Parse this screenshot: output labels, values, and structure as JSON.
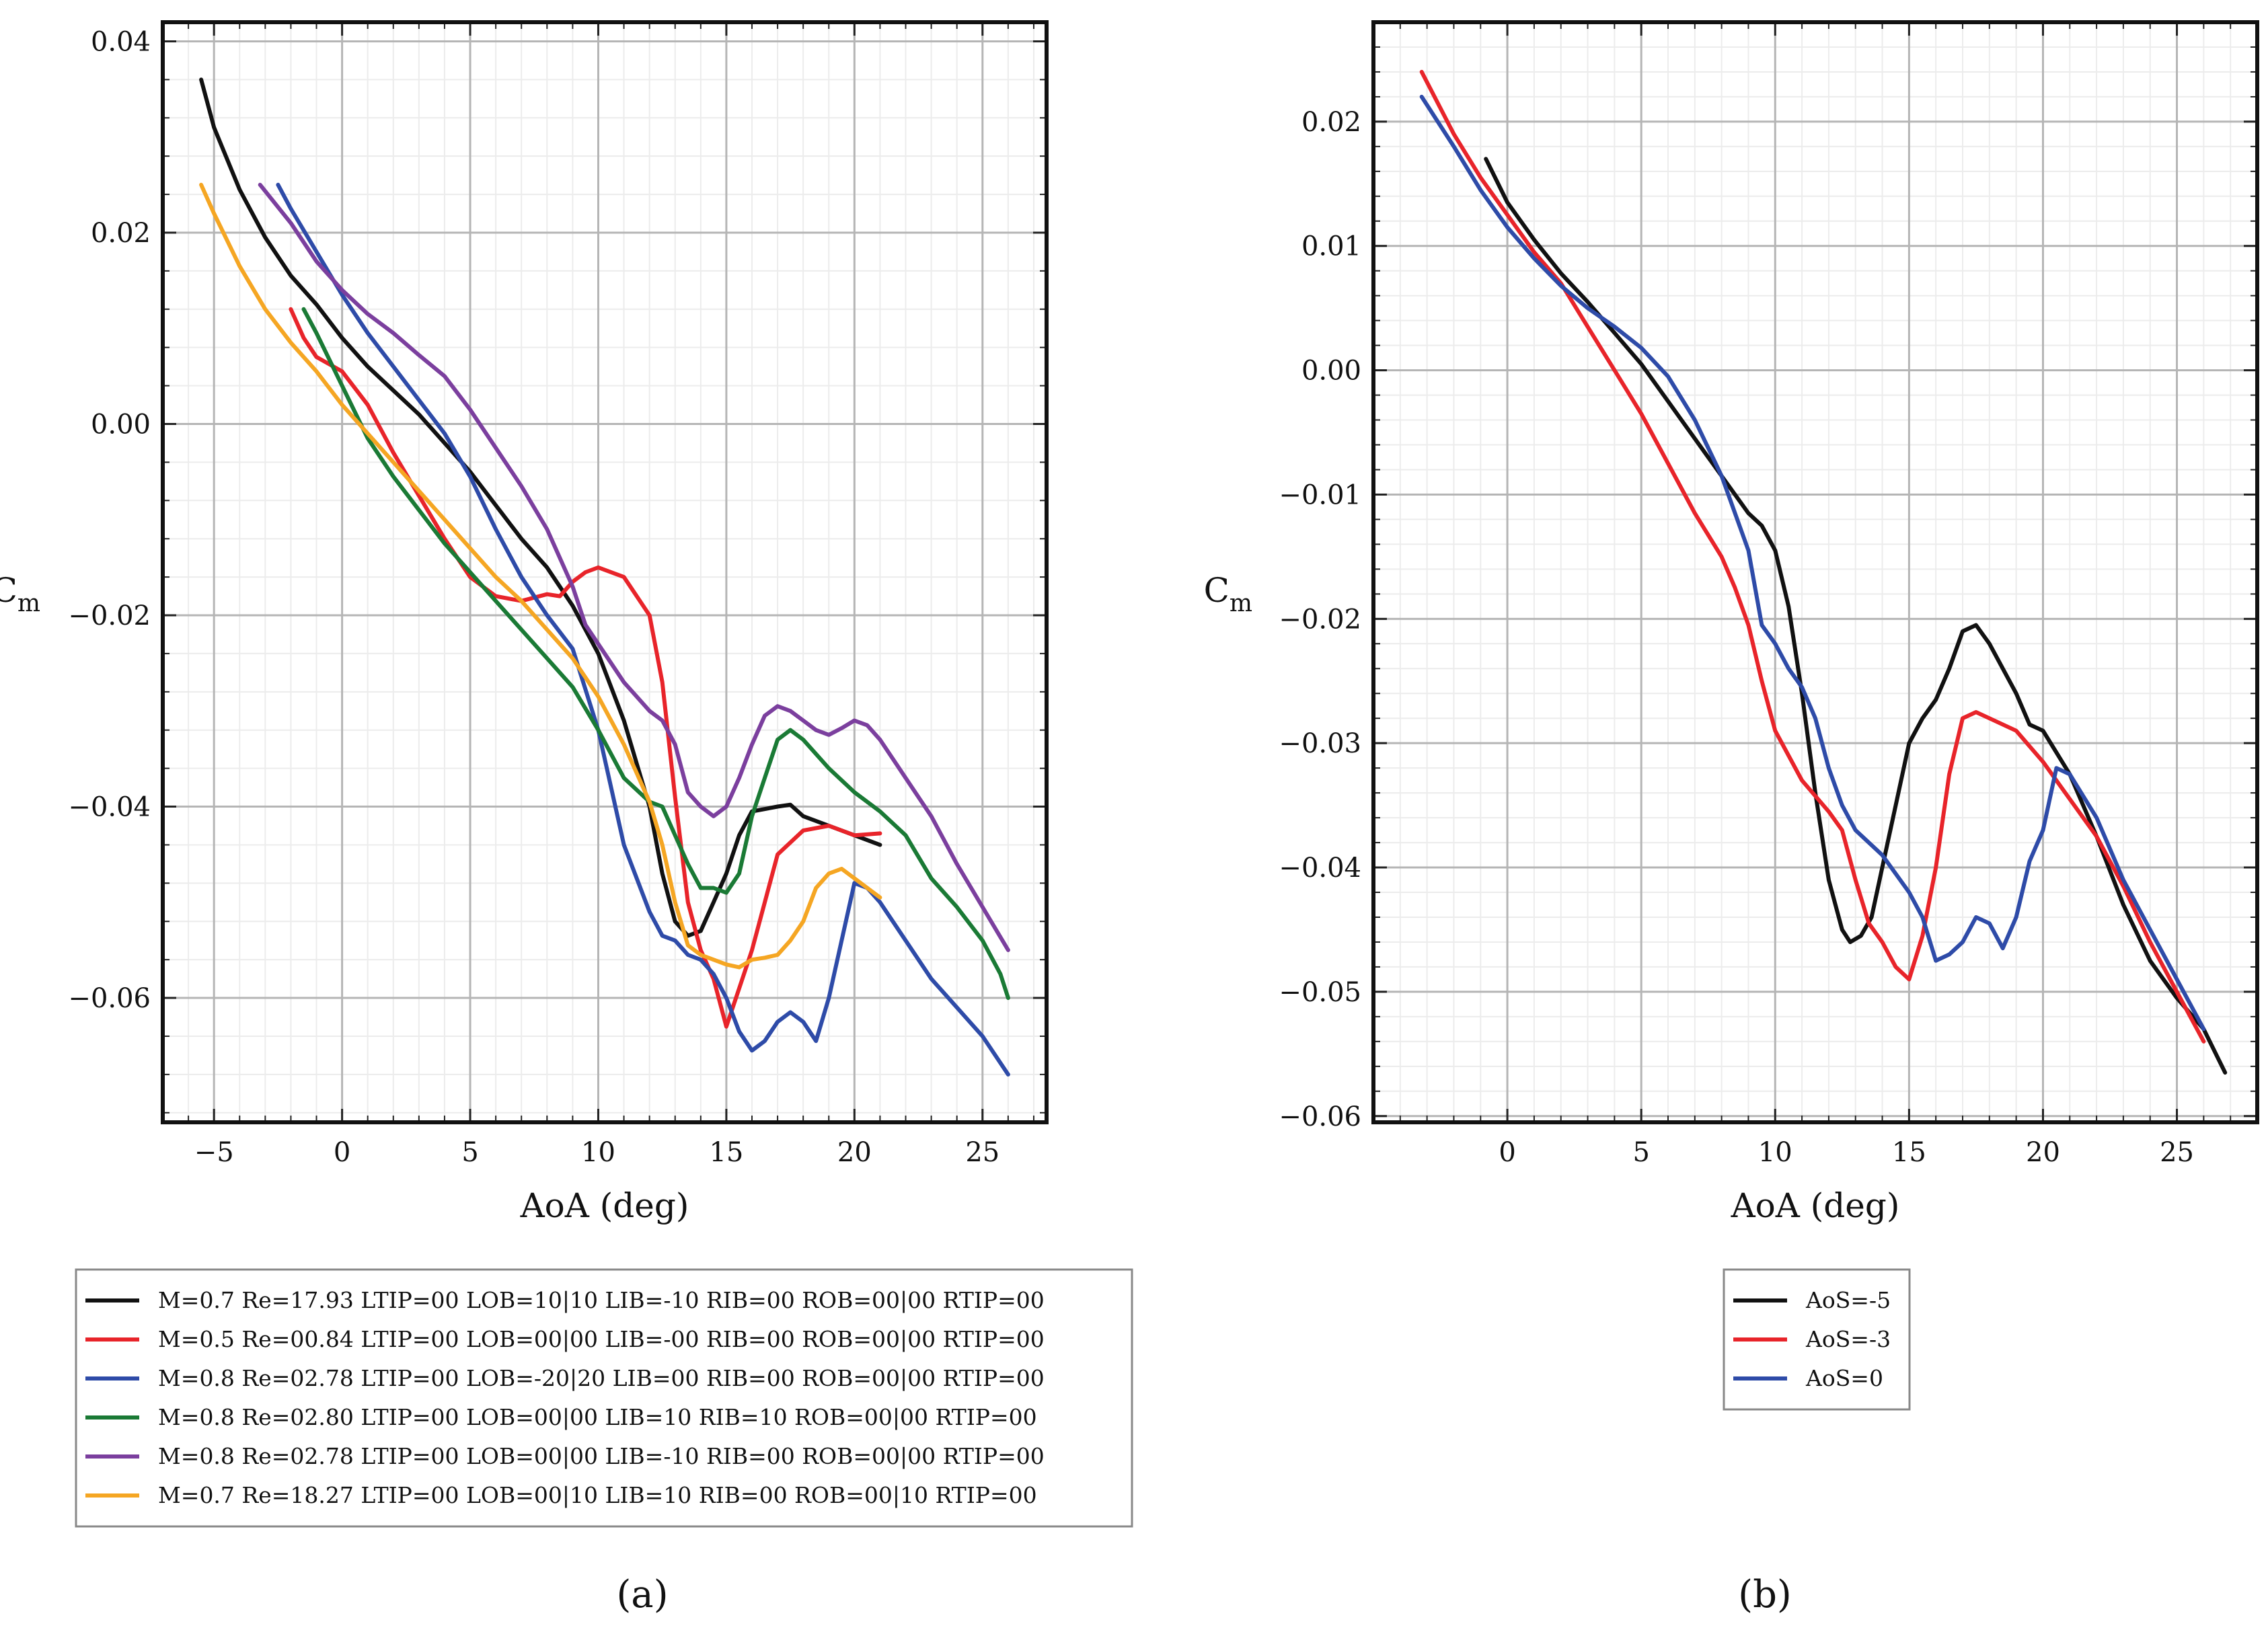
{
  "chart_data": [
    {
      "id": "a",
      "type": "line",
      "caption": "(a)",
      "xlabel": "AoA (deg)",
      "ylabel": "C",
      "ylabel_sub": "m",
      "xlim": [
        -7,
        27.5
      ],
      "ylim": [
        -0.073,
        0.042
      ],
      "xticks": [
        -5,
        0,
        5,
        10,
        15,
        20,
        25
      ],
      "xtick_labels": [
        "−5",
        "0",
        "5",
        "10",
        "15",
        "20",
        "25"
      ],
      "yticks": [
        0.04,
        0.02,
        0.0,
        -0.02,
        -0.04,
        -0.06
      ],
      "ytick_labels": [
        "0.04",
        "0.02",
        "0.00",
        "−0.02",
        "−0.04",
        "−0.06"
      ],
      "grid": true,
      "legend_position": "below",
      "series": [
        {
          "name": "M=0.7 Re=17.93 LTIP=00 LOB=10|10 LIB=-10 RIB=00 ROB=00|00 RTIP=00",
          "color": "#111111",
          "x": [
            -5.5,
            -5,
            -4,
            -3,
            -2,
            -1,
            0,
            1,
            2,
            3,
            4,
            5,
            6,
            7,
            8,
            9,
            10,
            11,
            12,
            12.5,
            13,
            13.5,
            14,
            14.5,
            15,
            15.5,
            16,
            17,
            17.5,
            18,
            19,
            20,
            20.5,
            21
          ],
          "y": [
            0.036,
            0.031,
            0.0245,
            0.0195,
            0.0155,
            0.0125,
            0.009,
            0.006,
            0.0035,
            0.001,
            -0.002,
            -0.005,
            -0.0085,
            -0.012,
            -0.015,
            -0.019,
            -0.024,
            -0.031,
            -0.04,
            -0.047,
            -0.052,
            -0.0535,
            -0.053,
            -0.05,
            -0.047,
            -0.043,
            -0.0405,
            -0.04,
            -0.0398,
            -0.041,
            -0.042,
            -0.043,
            -0.0435,
            -0.044
          ]
        },
        {
          "name": "M=0.5 Re=00.84 LTIP=00 LOB=00|00 LIB=-00 RIB=00 ROB=00|00 RTIP=00",
          "color": "#e8242a",
          "x": [
            -2,
            -1.5,
            -1,
            0,
            1,
            2,
            3,
            4,
            5,
            6,
            7,
            8,
            8.5,
            9,
            9.5,
            10,
            11,
            12,
            12.5,
            13,
            13.5,
            14,
            14.5,
            15,
            15.5,
            16,
            17,
            18,
            19,
            20,
            21
          ],
          "y": [
            0.012,
            0.009,
            0.007,
            0.0055,
            0.002,
            -0.003,
            -0.0075,
            -0.012,
            -0.016,
            -0.018,
            -0.0185,
            -0.0178,
            -0.018,
            -0.0165,
            -0.0155,
            -0.015,
            -0.016,
            -0.02,
            -0.027,
            -0.039,
            -0.05,
            -0.055,
            -0.058,
            -0.063,
            -0.059,
            -0.055,
            -0.045,
            -0.0425,
            -0.042,
            -0.043,
            -0.0428
          ]
        },
        {
          "name": "M=0.8 Re=02.78 LTIP=00 LOB=-20|20 LIB=00 RIB=00 ROB=00|00 RTIP=00",
          "color": "#2e4ba8",
          "x": [
            -2.5,
            -2,
            -1,
            0,
            1,
            2,
            3,
            4,
            5,
            6,
            7,
            8,
            9,
            10,
            11,
            12,
            12.5,
            13,
            13.5,
            14,
            14.5,
            15,
            15.5,
            16,
            16.5,
            17,
            17.5,
            18,
            18.5,
            19,
            19.5,
            20,
            20.5,
            21,
            22,
            23,
            24,
            25,
            26
          ],
          "y": [
            0.025,
            0.0225,
            0.018,
            0.0135,
            0.0095,
            0.006,
            0.0025,
            -0.001,
            -0.0055,
            -0.011,
            -0.016,
            -0.02,
            -0.0235,
            -0.032,
            -0.044,
            -0.051,
            -0.0535,
            -0.054,
            -0.0555,
            -0.056,
            -0.0575,
            -0.06,
            -0.0635,
            -0.0655,
            -0.0645,
            -0.0625,
            -0.0615,
            -0.0625,
            -0.0645,
            -0.06,
            -0.054,
            -0.048,
            -0.0485,
            -0.05,
            -0.054,
            -0.058,
            -0.061,
            -0.064,
            -0.068
          ]
        },
        {
          "name": "M=0.8 Re=02.80 LTIP=00 LOB=00|00 LIB=10 RIB=10 ROB=00|00 RTIP=00",
          "color": "#1a7a35",
          "x": [
            -1.5,
            -1,
            0,
            1,
            2,
            3,
            4,
            5,
            6,
            7,
            8,
            9,
            10,
            11,
            12,
            12.5,
            13,
            13.5,
            14,
            14.5,
            15,
            15.5,
            16,
            16.5,
            17,
            17.5,
            18,
            19,
            20,
            21,
            22,
            23,
            24,
            25,
            25.7,
            26
          ],
          "y": [
            0.012,
            0.0095,
            0.004,
            -0.0015,
            -0.0055,
            -0.009,
            -0.0125,
            -0.0155,
            -0.0185,
            -0.0215,
            -0.0245,
            -0.0275,
            -0.032,
            -0.037,
            -0.0395,
            -0.04,
            -0.043,
            -0.046,
            -0.0485,
            -0.0485,
            -0.049,
            -0.047,
            -0.041,
            -0.037,
            -0.033,
            -0.032,
            -0.033,
            -0.036,
            -0.0385,
            -0.0405,
            -0.043,
            -0.0475,
            -0.0505,
            -0.054,
            -0.0575,
            -0.06
          ]
        },
        {
          "name": "M=0.8 Re=02.78 LTIP=00 LOB=00|00 LIB=-10 RIB=00 ROB=00|00 RTIP=00",
          "color": "#7b3f9e",
          "x": [
            -3.2,
            -2,
            -1,
            0,
            1,
            2,
            3,
            4,
            5,
            6,
            7,
            8,
            9,
            9.5,
            10,
            11,
            12,
            12.5,
            13,
            13.5,
            14,
            14.5,
            15,
            15.5,
            16,
            16.5,
            17,
            17.5,
            18,
            18.5,
            19,
            19.5,
            20,
            20.5,
            21,
            22,
            23,
            24,
            25,
            26
          ],
          "y": [
            0.025,
            0.021,
            0.017,
            0.014,
            0.0115,
            0.0095,
            0.0072,
            0.005,
            0.0015,
            -0.0025,
            -0.0065,
            -0.011,
            -0.017,
            -0.021,
            -0.023,
            -0.027,
            -0.03,
            -0.031,
            -0.0335,
            -0.0385,
            -0.04,
            -0.041,
            -0.04,
            -0.037,
            -0.0335,
            -0.0305,
            -0.0295,
            -0.03,
            -0.031,
            -0.032,
            -0.0325,
            -0.0318,
            -0.031,
            -0.0315,
            -0.033,
            -0.037,
            -0.041,
            -0.046,
            -0.0505,
            -0.055
          ]
        },
        {
          "name": "M=0.7 Re=18.27 LTIP=00 LOB=00|10 LIB=10 RIB=00 ROB=00|10 RTIP=00",
          "color": "#f5a623",
          "x": [
            -5.5,
            -5,
            -4,
            -3,
            -2,
            -1,
            0,
            1,
            2,
            3,
            4,
            5,
            6,
            7,
            8,
            9,
            10,
            11,
            12,
            12.5,
            13,
            13.5,
            14,
            14.5,
            15,
            15.5,
            16,
            16.5,
            17,
            17.5,
            18,
            18.5,
            19,
            19.5,
            20,
            20.5,
            21
          ],
          "y": [
            0.025,
            0.022,
            0.0165,
            0.012,
            0.0085,
            0.0055,
            0.002,
            -0.001,
            -0.004,
            -0.007,
            -0.01,
            -0.013,
            -0.016,
            -0.0185,
            -0.0215,
            -0.0245,
            -0.0285,
            -0.0335,
            -0.0395,
            -0.044,
            -0.05,
            -0.0545,
            -0.0555,
            -0.056,
            -0.0565,
            -0.0568,
            -0.056,
            -0.0558,
            -0.0555,
            -0.054,
            -0.052,
            -0.0485,
            -0.047,
            -0.0465,
            -0.0475,
            -0.0485,
            -0.0495
          ]
        }
      ]
    },
    {
      "id": "b",
      "type": "line",
      "caption": "(b)",
      "xlabel": "AoA (deg)",
      "ylabel": "C",
      "ylabel_sub": "m",
      "xlim": [
        -5,
        28
      ],
      "ylim": [
        -0.0605,
        0.028
      ],
      "xticks": [
        0,
        5,
        10,
        15,
        20,
        25
      ],
      "xtick_labels": [
        "0",
        "5",
        "10",
        "15",
        "20",
        "25"
      ],
      "yticks": [
        0.02,
        0.01,
        0.0,
        -0.01,
        -0.02,
        -0.03,
        -0.04,
        -0.05,
        -0.06
      ],
      "ytick_labels": [
        "0.02",
        "0.01",
        "0.00",
        "−0.01",
        "−0.02",
        "−0.03",
        "−0.04",
        "−0.05",
        "−0.06"
      ],
      "grid": true,
      "legend_position": "below",
      "series": [
        {
          "name": "AoS=-5",
          "color": "#111111",
          "x": [
            -0.8,
            0,
            1,
            2,
            3,
            4,
            5,
            6,
            7,
            8,
            9,
            9.5,
            10,
            10.5,
            11,
            11.5,
            12,
            12.5,
            12.8,
            13.2,
            13.6,
            14,
            14.5,
            15,
            15.5,
            16,
            16.5,
            17,
            17.5,
            18,
            19,
            19.5,
            20,
            21,
            22,
            23,
            24,
            25,
            26,
            26.8
          ],
          "y": [
            0.017,
            0.0135,
            0.0105,
            0.0078,
            0.0055,
            0.003,
            0.0005,
            -0.0025,
            -0.0055,
            -0.0085,
            -0.0115,
            -0.0125,
            -0.0145,
            -0.019,
            -0.026,
            -0.034,
            -0.041,
            -0.045,
            -0.046,
            -0.0455,
            -0.044,
            -0.04,
            -0.035,
            -0.03,
            -0.028,
            -0.0265,
            -0.024,
            -0.021,
            -0.0205,
            -0.022,
            -0.026,
            -0.0285,
            -0.029,
            -0.0325,
            -0.0375,
            -0.043,
            -0.0475,
            -0.0505,
            -0.053,
            -0.0565
          ]
        },
        {
          "name": "AoS=-3",
          "color": "#e8242a",
          "x": [
            -3.2,
            -2,
            -1,
            0,
            1,
            2,
            3,
            4,
            5,
            6,
            7,
            8,
            8.5,
            9,
            9.5,
            10,
            11,
            12,
            12.5,
            13,
            13.5,
            14,
            14.5,
            15,
            15.5,
            16,
            16.5,
            17,
            17.5,
            18,
            19,
            20,
            21,
            22,
            23,
            24,
            25,
            25.5,
            26
          ],
          "y": [
            0.024,
            0.019,
            0.0155,
            0.0125,
            0.0095,
            0.007,
            0.0035,
            0.0,
            -0.0035,
            -0.0075,
            -0.0115,
            -0.015,
            -0.0175,
            -0.0205,
            -0.025,
            -0.029,
            -0.033,
            -0.0355,
            -0.037,
            -0.041,
            -0.0445,
            -0.046,
            -0.048,
            -0.049,
            -0.0455,
            -0.04,
            -0.0325,
            -0.028,
            -0.0275,
            -0.028,
            -0.029,
            -0.0315,
            -0.0345,
            -0.0375,
            -0.0415,
            -0.046,
            -0.05,
            -0.052,
            -0.054
          ]
        },
        {
          "name": "AoS=0",
          "color": "#2e4ba8",
          "x": [
            -3.2,
            -2,
            -1,
            0,
            1,
            2,
            3,
            4,
            5,
            6,
            7,
            8,
            9,
            9.5,
            10,
            10.5,
            11,
            11.5,
            12,
            12.5,
            13,
            14,
            15,
            15.5,
            16,
            16.5,
            17,
            17.5,
            18,
            18.5,
            19,
            19.5,
            20,
            20.5,
            21,
            22,
            23,
            24,
            25,
            26
          ],
          "y": [
            0.022,
            0.018,
            0.0145,
            0.0115,
            0.009,
            0.0068,
            0.005,
            0.0035,
            0.0018,
            -0.0005,
            -0.004,
            -0.0085,
            -0.0145,
            -0.0205,
            -0.022,
            -0.024,
            -0.0255,
            -0.028,
            -0.032,
            -0.035,
            -0.037,
            -0.039,
            -0.042,
            -0.044,
            -0.0475,
            -0.047,
            -0.046,
            -0.044,
            -0.0445,
            -0.0465,
            -0.044,
            -0.0395,
            -0.037,
            -0.032,
            -0.0325,
            -0.036,
            -0.041,
            -0.045,
            -0.049,
            -0.053
          ]
        }
      ]
    }
  ]
}
